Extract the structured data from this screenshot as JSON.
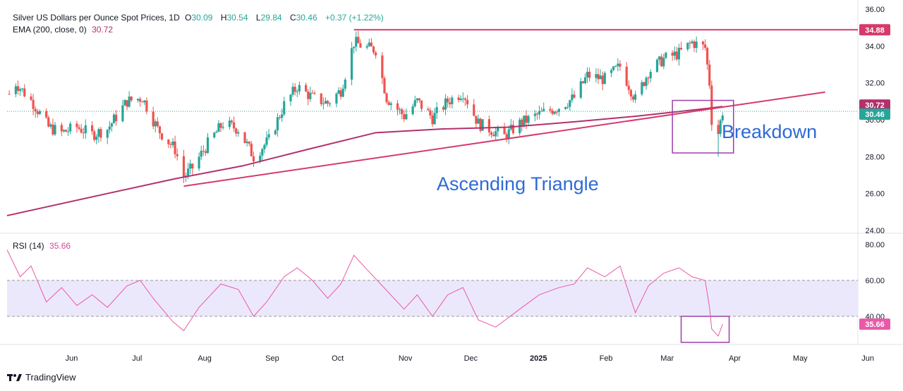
{
  "legend": {
    "symbol": "Silver US Dollars per Ounce Spot Prices, 1D",
    "open_label": "O",
    "open": "30.09",
    "high_label": "H",
    "high": "30.54",
    "low_label": "L",
    "low": "29.84",
    "close_label": "C",
    "close": "30.46",
    "change": "+0.37 (+1.22%)",
    "ema_label": "EMA (200, close, 0)",
    "ema_value": "30.72",
    "rsi_label": "RSI (14)",
    "rsi_value": "35.66"
  },
  "annotations": {
    "pattern": "Ascending Triangle",
    "breakdown": "Breakdown"
  },
  "branding": {
    "name": "TradingView"
  },
  "colors": {
    "up": "#26a69a",
    "down": "#ef5350",
    "trendline": "#d63a6a",
    "ema": "#b3306b",
    "rsi": "#e85aa8",
    "box": "#9c3fa8",
    "rsi_band": "#ece8fb"
  },
  "chart_data": [
    {
      "type": "candlestick",
      "title": "Silver US Dollars per Ounce Spot Prices, 1D",
      "y_ticks": [
        "36.00",
        "34.00",
        "32.00",
        "30.00",
        "28.00",
        "26.00",
        "24.00"
      ],
      "ylim": [
        24,
        36
      ],
      "x_ticks": [
        "Jun",
        "Jul",
        "Aug",
        "Sep",
        "Oct",
        "Nov",
        "Dec",
        "2025",
        "Feb",
        "Mar",
        "Apr",
        "May",
        "Jun"
      ],
      "x_tick_dates": [
        "2024-06-01",
        "2024-07-01",
        "2024-08-01",
        "2024-09-01",
        "2024-10-01",
        "2024-11-01",
        "2024-12-01",
        "2025-01-01",
        "2025-02-01",
        "2025-03-01",
        "2025-04-01",
        "2025-05-01",
        "2025-06-01"
      ],
      "xlim": [
        "2024-05-16",
        "2025-06-10"
      ],
      "price_path": [
        [
          "2024-05-17",
          31.4
        ],
        [
          "2024-05-20",
          32.0
        ],
        [
          "2024-05-28",
          30.9
        ],
        [
          "2024-06-04",
          29.6
        ],
        [
          "2024-06-10",
          29.3
        ],
        [
          "2024-06-17",
          29.6
        ],
        [
          "2024-06-24",
          29.2
        ],
        [
          "2024-07-01",
          29.5
        ],
        [
          "2024-07-10",
          31.0
        ],
        [
          "2024-07-17",
          31.2
        ],
        [
          "2024-07-24",
          29.5
        ],
        [
          "2024-08-01",
          28.4
        ],
        [
          "2024-08-05",
          26.9
        ],
        [
          "2024-08-09",
          27.4
        ],
        [
          "2024-08-16",
          28.7
        ],
        [
          "2024-08-23",
          29.8
        ],
        [
          "2024-08-30",
          29.5
        ],
        [
          "2024-09-06",
          28.0
        ],
        [
          "2024-09-13",
          28.9
        ],
        [
          "2024-09-20",
          30.8
        ],
        [
          "2024-09-26",
          31.8
        ],
        [
          "2024-10-03",
          31.2
        ],
        [
          "2024-10-10",
          30.9
        ],
        [
          "2024-10-16",
          31.6
        ],
        [
          "2024-10-22",
          34.2
        ],
        [
          "2024-10-28",
          33.9
        ],
        [
          "2024-11-01",
          33.8
        ],
        [
          "2024-11-06",
          31.2
        ],
        [
          "2024-11-14",
          30.2
        ],
        [
          "2024-11-20",
          31.0
        ],
        [
          "2024-11-27",
          30.1
        ],
        [
          "2024-12-04",
          31.0
        ],
        [
          "2024-12-11",
          31.5
        ],
        [
          "2024-12-18",
          29.8
        ],
        [
          "2024-12-30",
          29.1
        ],
        [
          "2025-01-06",
          29.8
        ],
        [
          "2025-01-15",
          30.3
        ],
        [
          "2025-01-24",
          30.7
        ],
        [
          "2025-01-31",
          31.2
        ],
        [
          "2025-02-06",
          32.4
        ],
        [
          "2025-02-14",
          32.2
        ],
        [
          "2025-02-21",
          32.9
        ],
        [
          "2025-02-28",
          31.1
        ],
        [
          "2025-03-06",
          32.6
        ],
        [
          "2025-03-13",
          33.3
        ],
        [
          "2025-03-20",
          33.6
        ],
        [
          "2025-03-26",
          34.2
        ],
        [
          "2025-04-01",
          33.9
        ],
        [
          "2025-04-03",
          32.0
        ],
        [
          "2025-04-04",
          30.0
        ],
        [
          "2025-04-07",
          29.3
        ],
        [
          "2025-04-09",
          30.46
        ]
      ],
      "ema_200": [
        [
          "2024-05-16",
          24.8
        ],
        [
          "2024-07-01",
          26.0
        ],
        [
          "2024-08-01",
          26.8
        ],
        [
          "2024-09-01",
          27.5
        ],
        [
          "2024-10-01",
          28.4
        ],
        [
          "2024-11-01",
          29.3
        ],
        [
          "2024-12-01",
          29.5
        ],
        [
          "2025-01-01",
          29.6
        ],
        [
          "2025-02-01",
          29.9
        ],
        [
          "2025-03-01",
          30.2
        ],
        [
          "2025-04-01",
          30.6
        ],
        [
          "2025-04-09",
          30.72
        ]
      ],
      "trendlines": [
        {
          "from": [
            "2024-08-05",
            26.4
          ],
          "to": [
            "2025-05-26",
            31.5
          ]
        },
        {
          "from": [
            "2024-10-22",
            34.88
          ],
          "to": [
            "2025-06-10",
            34.88
          ]
        }
      ],
      "price_labels": [
        {
          "value": 34.88,
          "text": "34.88",
          "color": "#d63a6a"
        },
        {
          "value": 30.72,
          "text": "30.72",
          "color": "#b3306b"
        },
        {
          "value": 30.46,
          "text": "30.46",
          "color": "#26a69a"
        }
      ]
    },
    {
      "type": "line",
      "title": "RSI (14)",
      "y_ticks": [
        "80.00",
        "60.00",
        "40.00"
      ],
      "ylim": [
        23,
        81
      ],
      "bands": [
        40,
        60
      ],
      "series": [
        {
          "name": "RSI (14)",
          "points": [
            [
              "2024-05-16",
              77
            ],
            [
              "2024-05-22",
              62
            ],
            [
              "2024-05-27",
              68
            ],
            [
              "2024-06-03",
              48
            ],
            [
              "2024-06-10",
              56
            ],
            [
              "2024-06-17",
              46
            ],
            [
              "2024-06-24",
              52
            ],
            [
              "2024-07-01",
              45
            ],
            [
              "2024-07-10",
              57
            ],
            [
              "2024-07-16",
              60
            ],
            [
              "2024-07-22",
              50
            ],
            [
              "2024-07-31",
              37
            ],
            [
              "2024-08-05",
              32
            ],
            [
              "2024-08-12",
              45
            ],
            [
              "2024-08-22",
              58
            ],
            [
              "2024-08-30",
              55
            ],
            [
              "2024-09-06",
              40
            ],
            [
              "2024-09-12",
              48
            ],
            [
              "2024-09-20",
              62
            ],
            [
              "2024-09-26",
              67
            ],
            [
              "2024-10-03",
              60
            ],
            [
              "2024-10-10",
              50
            ],
            [
              "2024-10-16",
              58
            ],
            [
              "2024-10-22",
              74
            ],
            [
              "2024-10-28",
              66
            ],
            [
              "2024-11-04",
              57
            ],
            [
              "2024-11-14",
              44
            ],
            [
              "2024-11-20",
              52
            ],
            [
              "2024-11-27",
              40
            ],
            [
              "2024-12-04",
              52
            ],
            [
              "2024-12-11",
              56
            ],
            [
              "2024-12-18",
              38
            ],
            [
              "2024-12-26",
              34
            ],
            [
              "2025-01-06",
              44
            ],
            [
              "2025-01-15",
              52
            ],
            [
              "2025-01-24",
              56
            ],
            [
              "2025-01-31",
              58
            ],
            [
              "2025-02-06",
              67
            ],
            [
              "2025-02-14",
              62
            ],
            [
              "2025-02-21",
              68
            ],
            [
              "2025-02-28",
              42
            ],
            [
              "2025-03-06",
              57
            ],
            [
              "2025-03-13",
              64
            ],
            [
              "2025-03-20",
              67
            ],
            [
              "2025-03-26",
              62
            ],
            [
              "2025-04-01",
              60
            ],
            [
              "2025-04-03",
              45
            ],
            [
              "2025-04-04",
              33
            ],
            [
              "2025-04-07",
              29
            ],
            [
              "2025-04-09",
              35.66
            ]
          ]
        }
      ]
    }
  ]
}
